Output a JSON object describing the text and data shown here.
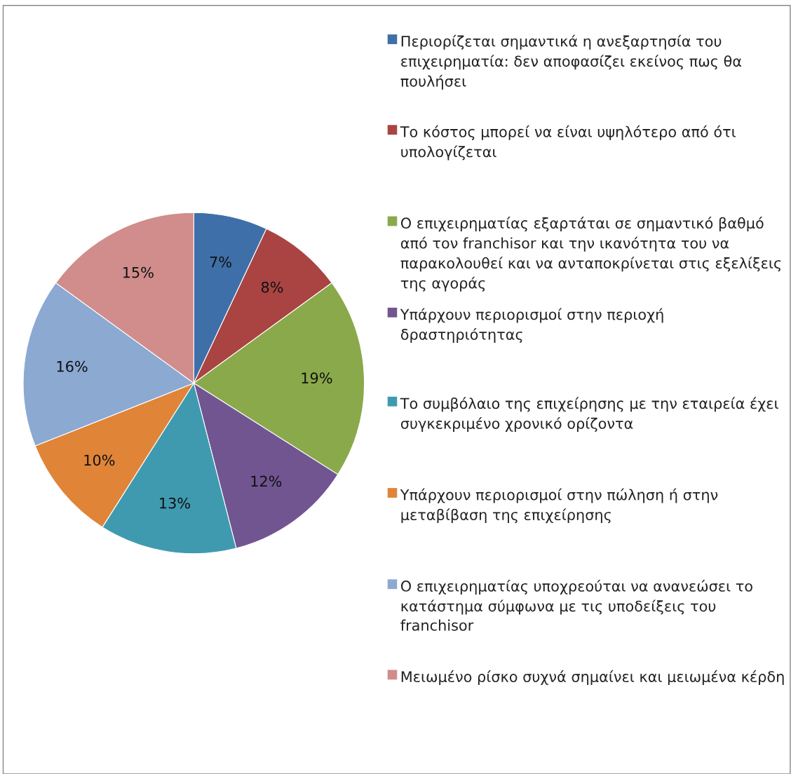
{
  "chart_data": {
    "type": "pie",
    "categories": [
      "Περιορίζεται σημαντικά η ανεξαρτησία του επιχειρηματία: δεν αποφασίζει εκείνος πως θα πουλήσει",
      "Το κόστος μπορεί να είναι υψηλότερο από ότι υπολογίζεται",
      "Ο επιχειρηματίας εξαρτάται σε σημαντικό βαθμό από τον franchisor και την ικανότητα του να παρακολουθεί και να ανταποκρίνεται στις εξελίξεις της αγοράς",
      "Υπάρχουν περιορισμοί στην περιοχή δραστηριότητας",
      "Το συμβόλαιο της επιχείρησης με την εταιρεία έχει συγκεκριμένο χρονικό ορίζοντα",
      "Υπάρχουν περιορισμοί στην πώληση ή στην μεταβίβαση της επιχείρησης",
      "Ο επιχειρηματίας υποχρεούται να ανανεώσει το κατάστημα σύμφωνα με τις υποδείξεις του franchisor",
      "Μειωμένο ρίσκο συχνά σημαίνει και μειωμένα κέρδη"
    ],
    "values": [
      7,
      8,
      19,
      12,
      13,
      10,
      16,
      15
    ],
    "colors": [
      "#3f6fa8",
      "#a94442",
      "#8aa94a",
      "#715591",
      "#3f9ab0",
      "#e08438",
      "#8ca9d2",
      "#d08d8b"
    ],
    "data_labels": true,
    "value_labels": [
      "7%",
      "8%",
      "19%",
      "12%",
      "13%",
      "10%",
      "16%",
      "15%"
    ],
    "legend": "right"
  }
}
